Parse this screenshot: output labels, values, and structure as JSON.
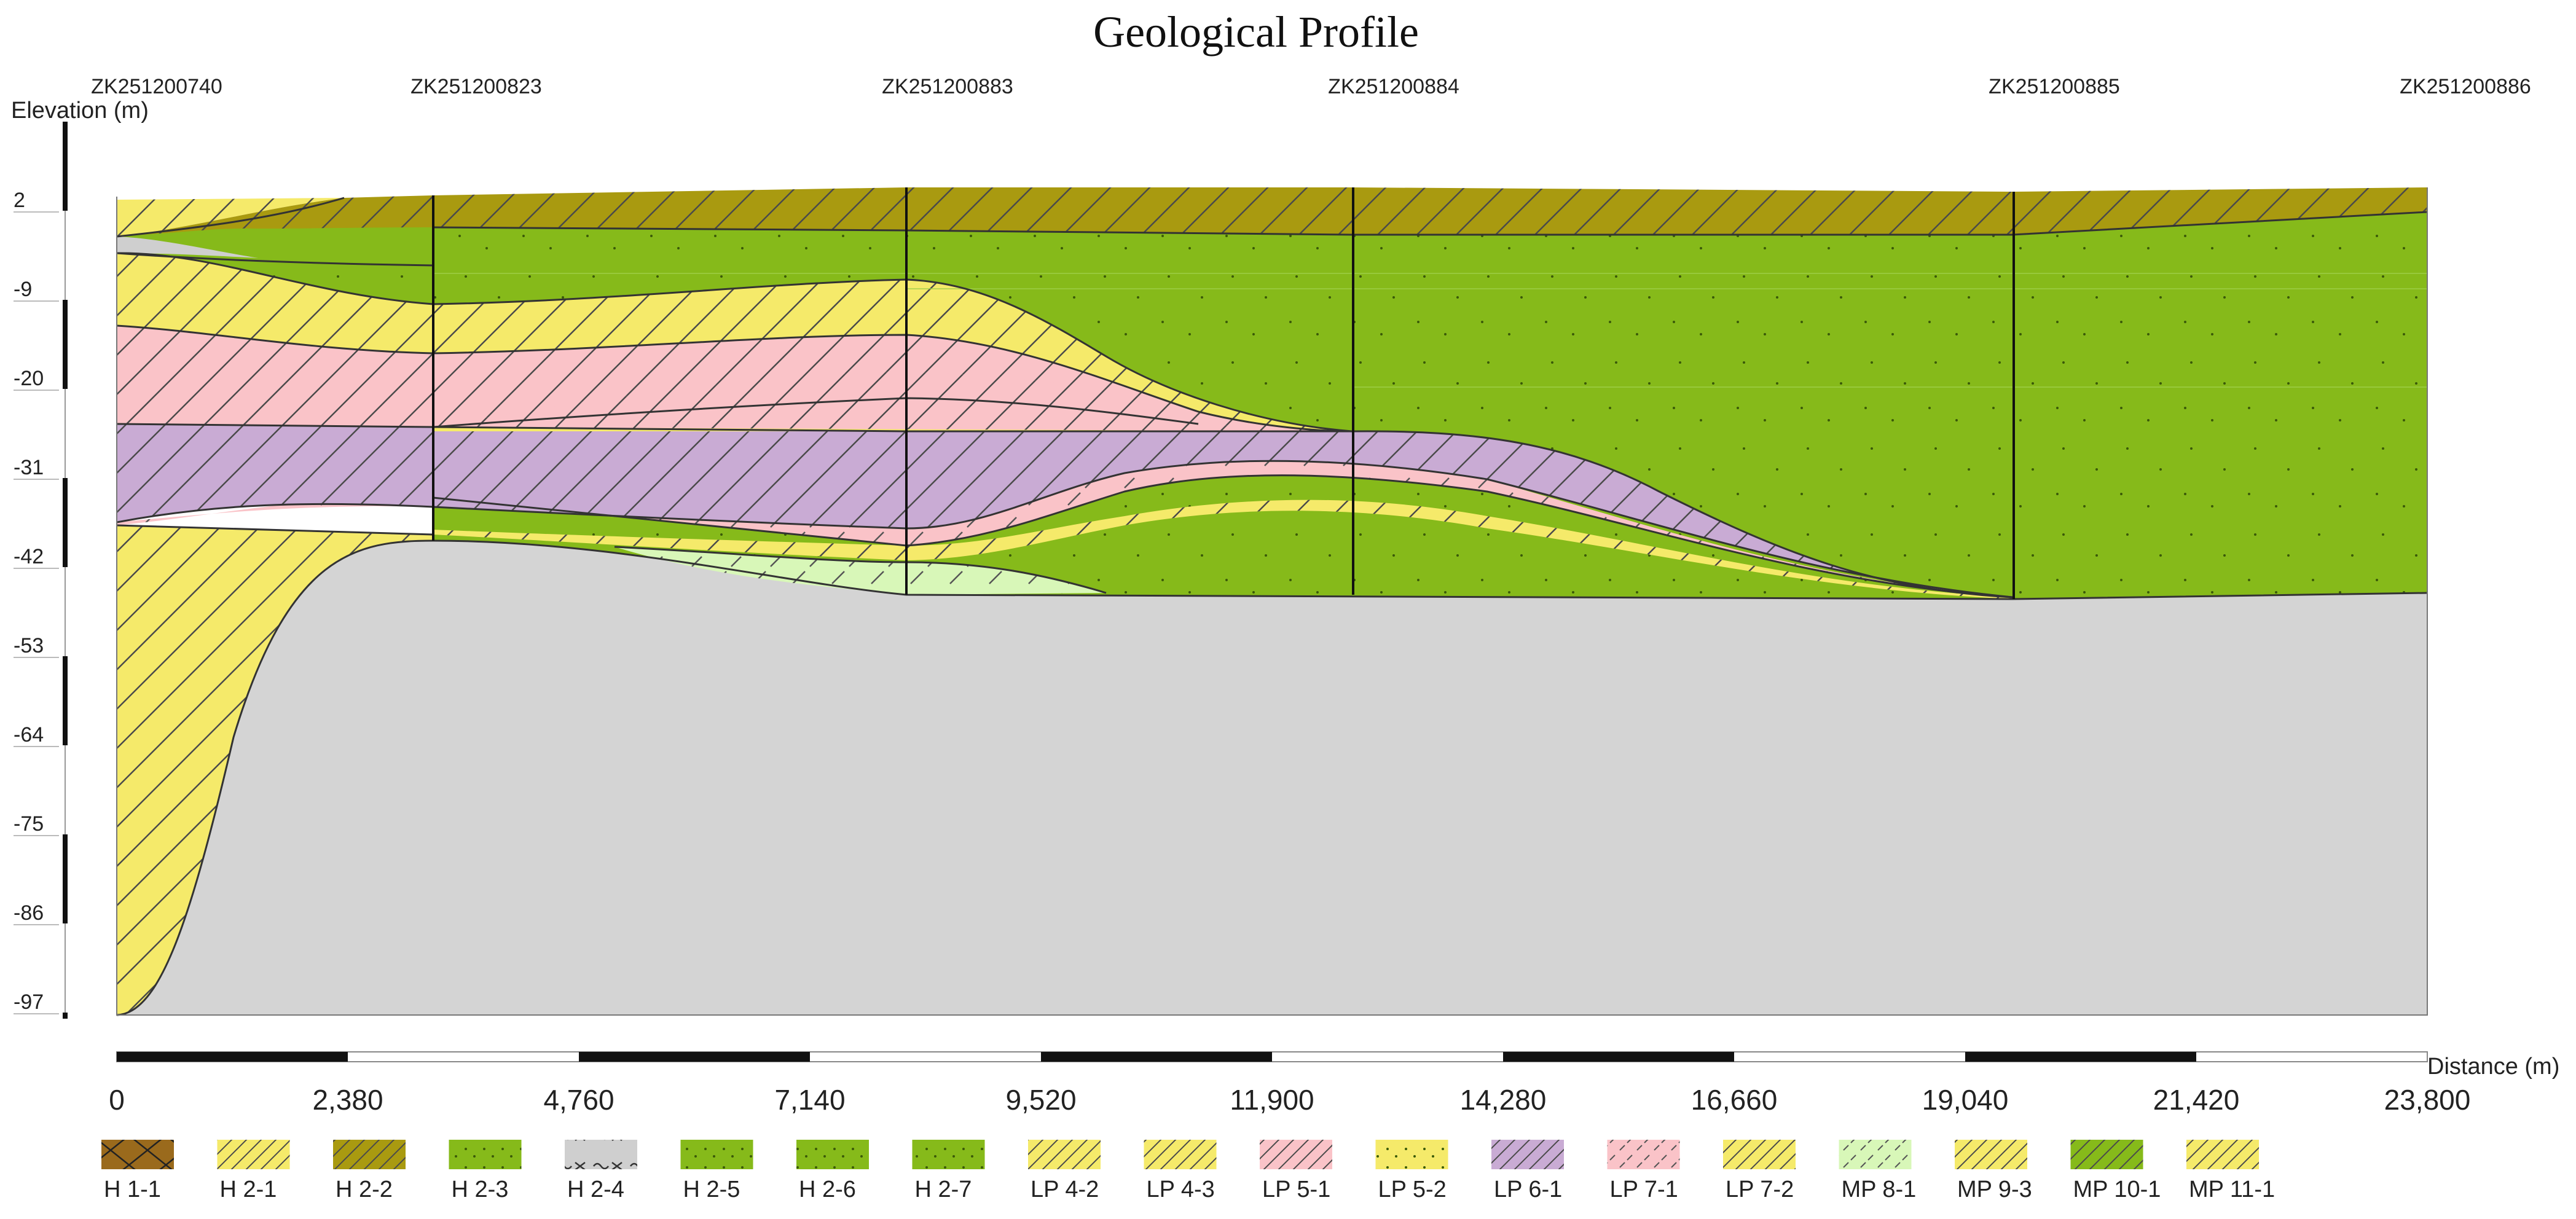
{
  "title": "Geological Profile",
  "y_axis": {
    "label": "Elevation (m)",
    "ticks": [
      "2",
      "-9",
      "-20",
      "-31",
      "-42",
      "-53",
      "-64",
      "-75",
      "-86",
      "-97"
    ]
  },
  "x_axis": {
    "label": "Distance (m)",
    "ticks": [
      "0",
      "2,380",
      "4,760",
      "7,140",
      "9,520",
      "11,900",
      "14,280",
      "16,660",
      "19,040",
      "21,420",
      "23,800"
    ]
  },
  "boreholes": [
    "ZK251200740",
    "ZK251200823",
    "ZK251200883",
    "ZK251200884",
    "ZK251200885",
    "ZK251200886"
  ],
  "legend": [
    {
      "label": "H 1-1",
      "color": "#9a6a1c",
      "pattern": "cross"
    },
    {
      "label": "H 2-1",
      "color": "#f5ea6a",
      "pattern": "hatch"
    },
    {
      "label": "H 2-2",
      "color": "#a99a10",
      "pattern": "hatch"
    },
    {
      "label": "H 2-3",
      "color": "#86ba1a",
      "pattern": "dots"
    },
    {
      "label": "H 2-4",
      "color": "#cfcfcf",
      "pattern": "wave"
    },
    {
      "label": "H 2-5",
      "color": "#86ba1a",
      "pattern": "dots"
    },
    {
      "label": "H 2-6",
      "color": "#86ba1a",
      "pattern": "dots"
    },
    {
      "label": "H 2-7",
      "color": "#86ba1a",
      "pattern": "dots"
    },
    {
      "label": "LP 4-2",
      "color": "#f5ea6a",
      "pattern": "hatch"
    },
    {
      "label": "LP 4-3",
      "color": "#f5ea6a",
      "pattern": "hatch"
    },
    {
      "label": "LP 5-1",
      "color": "#fac3c8",
      "pattern": "hatch"
    },
    {
      "label": "LP 5-2",
      "color": "#f5ea6a",
      "pattern": "dots"
    },
    {
      "label": "LP 6-1",
      "color": "#c9abd4",
      "pattern": "hatch"
    },
    {
      "label": "LP 7-1",
      "color": "#fac3c8",
      "pattern": "dash"
    },
    {
      "label": "LP 7-2",
      "color": "#f5ea6a",
      "pattern": "hatch"
    },
    {
      "label": "MP 8-1",
      "color": "#d8f7b8",
      "pattern": "dash"
    },
    {
      "label": "MP 9-3",
      "color": "#f5ea6a",
      "pattern": "hatch"
    },
    {
      "label": "MP 10-1",
      "color": "#86ba1a",
      "pattern": "hatch"
    },
    {
      "label": "MP 11-1",
      "color": "#f5ea6a",
      "pattern": "hatch"
    }
  ],
  "colors": {
    "yellow": "#f5ea6a",
    "green": "#86ba1a",
    "olive": "#a99a10",
    "pink": "#fac3c8",
    "purple": "#c9abd4",
    "light_green": "#d8f7b8",
    "gray": "#d4d4d4"
  }
}
